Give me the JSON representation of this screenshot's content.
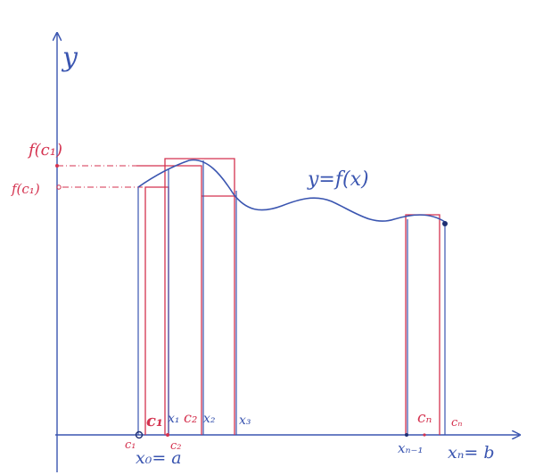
{
  "labels": {
    "y_axis": "y",
    "curve": "y=f(x)",
    "f_c1": "f(c₁)",
    "f_c1_lower": "f(c₁)",
    "c1_top": "c₁",
    "c1_bottom": "c₁",
    "x0": "x₀= a",
    "x1": "x₁",
    "c2_top": "c₂",
    "c2_bottom": "c₂",
    "x2": "x₂",
    "x3": "x₃",
    "cn_top": "cₙ",
    "cn_right": "cₙ",
    "xn_1": "xₙ₋₁",
    "xn": "xₙ= b"
  },
  "colors": {
    "axis": "#3a55b0",
    "curve": "#3a55b0",
    "rectangles": "#d4324f",
    "paper": "#ffffff"
  }
}
